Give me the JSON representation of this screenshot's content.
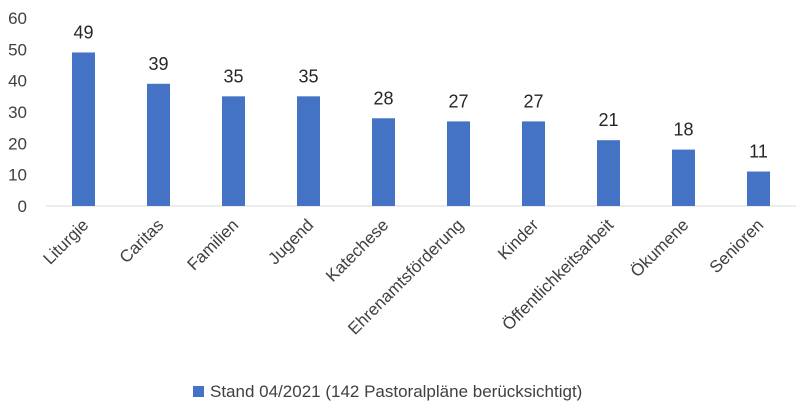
{
  "chart_data": {
    "type": "bar",
    "title": "",
    "xlabel": "",
    "ylabel": "",
    "ylim": [
      0,
      60
    ],
    "yticks": [
      0,
      10,
      20,
      30,
      40,
      50,
      60
    ],
    "grid": false,
    "legend_position": "bottom",
    "categories": [
      "Liturgie",
      "Caritas",
      "Familien",
      "Jugend",
      "Katechese",
      "Ehrenamtsförderung",
      "Kinder",
      "Öffentlichkeitsarbeit",
      "Ökumene",
      "Senioren"
    ],
    "series": [
      {
        "name": "Stand 04/2021 (142 Pastoralpläne berücksichtigt)",
        "color": "#4472c4",
        "values": [
          49,
          39,
          35,
          35,
          28,
          27,
          27,
          21,
          18,
          11
        ]
      }
    ]
  }
}
